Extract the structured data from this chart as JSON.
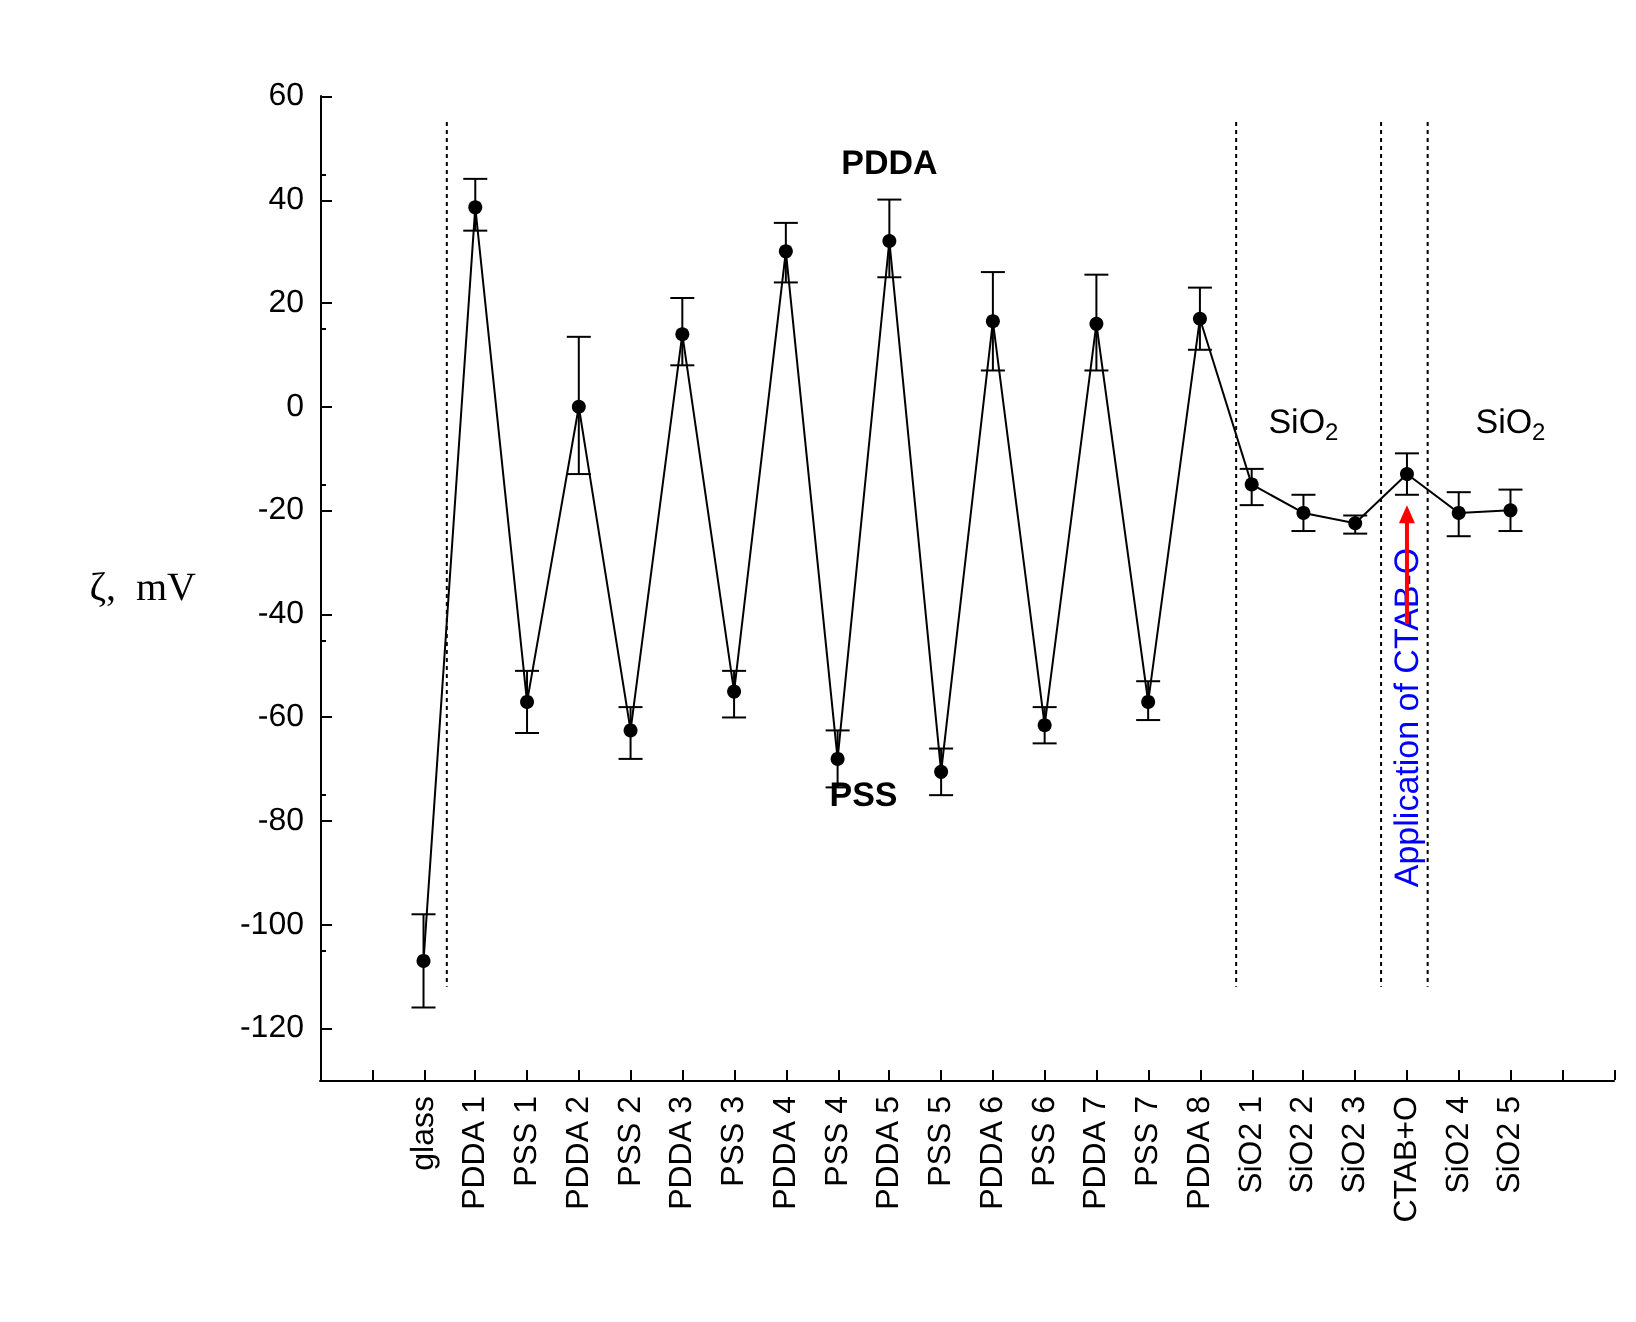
{
  "chart_data": {
    "type": "line",
    "ylabel": "ζ,  mV",
    "categories": [
      null,
      null,
      "glass",
      "PDDA 1",
      "PSS 1",
      "PDDA 2",
      "PSS 2",
      "PDDA 3",
      "PSS 3",
      "PDDA 4",
      "PSS 4",
      "PDDA 5",
      "PSS 5",
      "PDDA 6",
      "PSS 6",
      "PDDA 7",
      "PSS 7",
      "PDDA 8",
      "SiO2 1",
      "SiO2 2",
      "SiO2 3",
      "CTAB+O",
      "SiO2 4",
      "SiO2 5",
      null,
      null
    ],
    "series": [
      {
        "color": "#000000",
        "values": [
          null,
          null,
          -107,
          38.5,
          -57,
          0,
          -62.5,
          14,
          -55,
          30,
          -68,
          32,
          -70.5,
          16.5,
          -61.5,
          16,
          -57,
          17,
          -15,
          -20.5,
          -22.5,
          -13,
          -20.5,
          -20,
          null,
          null
        ],
        "errors": [
          null,
          null,
          [
            -116,
            -98
          ],
          [
            34,
            44
          ],
          [
            -63,
            -51
          ],
          [
            -13,
            13.5
          ],
          [
            -68,
            -58
          ],
          [
            8,
            21
          ],
          [
            -60,
            -51
          ],
          [
            24,
            35.5
          ],
          [
            -73.5,
            -62.5
          ],
          [
            25,
            40
          ],
          [
            -75,
            -66
          ],
          [
            7,
            26
          ],
          [
            -65,
            -58
          ],
          [
            7,
            25.5
          ],
          [
            -60.5,
            -53
          ],
          [
            11,
            23
          ],
          [
            -19,
            -12
          ],
          [
            -24,
            -17
          ],
          [
            -24.5,
            -21
          ],
          [
            -17,
            -9
          ],
          [
            -25,
            -16.5
          ],
          [
            -24,
            -16
          ],
          null,
          null
        ]
      }
    ],
    "marker": "circle",
    "line_style": "solid",
    "ylim": [
      -130,
      60
    ],
    "yticks": [
      -120,
      -100,
      -80,
      -60,
      -40,
      -20,
      0,
      20,
      40,
      60
    ],
    "annotations": [
      "PDDA",
      "PSS",
      "SiO$_{2}$",
      "SiO$_{2}$",
      "Application of CTAB-O"
    ]
  }
}
